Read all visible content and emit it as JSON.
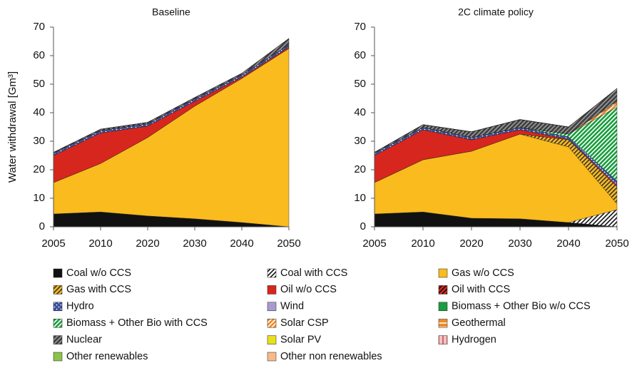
{
  "chart_data": [
    {
      "type": "stacked_area",
      "title": "Baseline",
      "y_label": "Water withdrawal [Gm³]",
      "categories": [
        "2005",
        "2010",
        "2020",
        "2030",
        "2040",
        "2050"
      ],
      "ylim": [
        0,
        70
      ],
      "yticks": [
        0,
        10,
        20,
        30,
        40,
        50,
        60,
        70
      ],
      "series": [
        {
          "name": "Coal w/o CCS",
          "color": "#111111",
          "values": [
            4.5,
            5.2,
            3.8,
            2.8,
            1.5,
            0
          ]
        },
        {
          "name": "Coal with CCS",
          "color": "#ffffff",
          "pattern": "diagonal",
          "pattern_color": "#111111",
          "values": [
            0,
            0,
            0,
            0,
            0,
            0
          ]
        },
        {
          "name": "Gas w/o CCS",
          "color": "#f9bb1d",
          "values": [
            11,
            17,
            27.5,
            39.5,
            50.5,
            62.5
          ]
        },
        {
          "name": "Gas with CCS",
          "color": "#f9bb1d",
          "pattern": "diagonal",
          "pattern_color": "#333333",
          "values": [
            0,
            0,
            0,
            0,
            0,
            0
          ]
        },
        {
          "name": "Oil w/o CCS",
          "color": "#d7261e",
          "values": [
            9.5,
            10.7,
            4,
            1.7,
            0.5,
            0.5
          ]
        },
        {
          "name": "Oil with CCS",
          "color": "#d7261e",
          "pattern": "diagonal",
          "pattern_color": "#111111",
          "values": [
            0,
            0,
            0,
            0,
            0,
            0
          ]
        },
        {
          "name": "Hydro",
          "color": "#3b4ea0",
          "pattern": "dots",
          "pattern_color": "#ffffff",
          "values": [
            0.8,
            0.8,
            0.8,
            0.8,
            0.8,
            0.8
          ]
        },
        {
          "name": "Wind",
          "color": "#a99bd0",
          "values": [
            0,
            0,
            0,
            0,
            0,
            0
          ]
        },
        {
          "name": "Biomass + Other Bio w/o CCS",
          "color": "#1a9e3f",
          "values": [
            0,
            0,
            0,
            0,
            0,
            0
          ]
        },
        {
          "name": "Biomass + Other Bio with CCS",
          "color": "#1a9e3f",
          "pattern": "diagonal",
          "pattern_color": "#ffffff",
          "values": [
            0,
            0,
            0,
            0,
            0,
            0
          ]
        },
        {
          "name": "Solar CSP",
          "color": "#f08a24",
          "pattern": "diagonal",
          "pattern_color": "#ffffff",
          "values": [
            0,
            0,
            0,
            0,
            0,
            0
          ]
        },
        {
          "name": "Geothermal",
          "color": "#f08a24",
          "pattern": "horizontal",
          "pattern_color": "#ffffff",
          "values": [
            0,
            0,
            0,
            0,
            0,
            0
          ]
        },
        {
          "name": "Nuclear",
          "color": "#3f3f3f",
          "pattern": "diagonal",
          "pattern_color": "#9a9a9a",
          "values": [
            0.3,
            0.5,
            0.5,
            0.5,
            0.5,
            2.2
          ]
        },
        {
          "name": "Solar PV",
          "color": "#e8e020",
          "values": [
            0,
            0,
            0,
            0,
            0,
            0
          ]
        },
        {
          "name": "Hydrogen",
          "color": "#f4c2c2",
          "pattern": "vertical",
          "pattern_color": "#c0504d",
          "values": [
            0,
            0,
            0,
            0,
            0,
            0
          ]
        },
        {
          "name": "Other renewables",
          "color": "#8bc34a",
          "values": [
            0,
            0,
            0,
            0,
            0,
            0
          ]
        },
        {
          "name": "Other non renewables",
          "color": "#f7b98c",
          "values": [
            0,
            0,
            0,
            0,
            0,
            0
          ]
        }
      ]
    },
    {
      "type": "stacked_area",
      "title": "2C climate policy",
      "categories": [
        "2005",
        "2010",
        "2020",
        "2030",
        "2040",
        "2050"
      ],
      "ylim": [
        0,
        70
      ],
      "yticks": [
        0,
        10,
        20,
        30,
        40,
        50,
        60,
        70
      ],
      "series": [
        {
          "name": "Coal w/o CCS",
          "color": "#111111",
          "values": [
            4.5,
            5.2,
            3,
            2.8,
            1.5,
            0
          ]
        },
        {
          "name": "Coal with CCS",
          "color": "#ffffff",
          "pattern": "diagonal",
          "pattern_color": "#111111",
          "values": [
            0,
            0,
            0,
            0,
            0,
            6
          ]
        },
        {
          "name": "Gas w/o CCS",
          "color": "#f9bb1d",
          "values": [
            11,
            18.3,
            23.5,
            29.7,
            26.5,
            2
          ]
        },
        {
          "name": "Gas with CCS",
          "color": "#f9bb1d",
          "pattern": "diagonal",
          "pattern_color": "#333333",
          "values": [
            0,
            0,
            0,
            0,
            2.5,
            6
          ]
        },
        {
          "name": "Oil w/o CCS",
          "color": "#d7261e",
          "values": [
            9.5,
            10.5,
            4,
            1.5,
            0.2,
            0.5
          ]
        },
        {
          "name": "Oil with CCS",
          "color": "#d7261e",
          "pattern": "diagonal",
          "pattern_color": "#111111",
          "values": [
            0,
            0,
            0,
            0,
            0,
            0
          ]
        },
        {
          "name": "Hydro",
          "color": "#3b4ea0",
          "pattern": "dots",
          "pattern_color": "#ffffff",
          "values": [
            0.8,
            0.8,
            0.8,
            0.8,
            0.8,
            1.5
          ]
        },
        {
          "name": "Wind",
          "color": "#a99bd0",
          "values": [
            0,
            0,
            0,
            0,
            0,
            0
          ]
        },
        {
          "name": "Biomass + Other Bio w/o CCS",
          "color": "#1a9e3f",
          "values": [
            0,
            0,
            0,
            0,
            0,
            0
          ]
        },
        {
          "name": "Biomass + Other Bio with CCS",
          "color": "#1a9e3f",
          "pattern": "diagonal",
          "pattern_color": "#ffffff",
          "values": [
            0,
            0,
            0,
            0,
            1,
            26
          ]
        },
        {
          "name": "Solar CSP",
          "color": "#f08a24",
          "pattern": "diagonal",
          "pattern_color": "#ffffff",
          "values": [
            0,
            0,
            0,
            0,
            0,
            1.5
          ]
        },
        {
          "name": "Geothermal",
          "color": "#f08a24",
          "pattern": "horizontal",
          "pattern_color": "#ffffff",
          "values": [
            0,
            0,
            0,
            0,
            0,
            0.5
          ]
        },
        {
          "name": "Nuclear",
          "color": "#3f3f3f",
          "pattern": "diagonal",
          "pattern_color": "#9a9a9a",
          "values": [
            0.3,
            1,
            2,
            2.8,
            2.5,
            4.5
          ]
        },
        {
          "name": "Solar PV",
          "color": "#e8e020",
          "values": [
            0,
            0,
            0,
            0,
            0,
            0
          ]
        },
        {
          "name": "Hydrogen",
          "color": "#f4c2c2",
          "pattern": "vertical",
          "pattern_color": "#c0504d",
          "values": [
            0,
            0,
            0,
            0,
            0,
            0
          ]
        },
        {
          "name": "Other renewables",
          "color": "#8bc34a",
          "values": [
            0,
            0,
            0,
            0,
            0,
            0
          ]
        },
        {
          "name": "Other non renewables",
          "color": "#f7b98c",
          "values": [
            0,
            0,
            0,
            0,
            0,
            0
          ]
        }
      ]
    }
  ]
}
